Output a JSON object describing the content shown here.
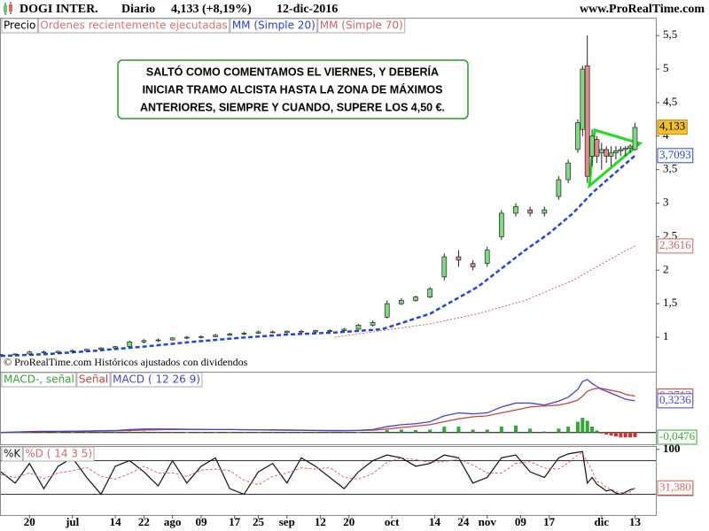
{
  "header": {
    "symbol": "DOGI INTER.",
    "period": "Diario",
    "price": "4,133 (+8,19%)",
    "date": "12-dic-2016",
    "site": "www.ProRealTime.com"
  },
  "footer": "© ProRealTime.com  Históricos ajustados con dividendos",
  "chart_data": [
    {
      "type": "candlestick",
      "xlim": [
        0,
        137
      ],
      "ylim": [
        0.75,
        5.74
      ],
      "yticks": [
        1,
        {
          "value": 1.5,
          "label": "1,5"
        },
        2,
        {
          "value": 2.5,
          "label": "2,5"
        },
        3,
        {
          "value": 3.5,
          "label": "3,5"
        },
        4,
        {
          "value": 4.5,
          "label": "4,5"
        },
        5,
        {
          "value": 5.5,
          "label": "5,5"
        }
      ],
      "legend": [
        {
          "name": "Precio",
          "color": "#000000"
        },
        {
          "name": "Ordenes recientemente ejecutadas",
          "color": "#e07070"
        }
      ],
      "up_color": "#80d880",
      "down_color": "#e08a8a",
      "x": [
        0,
        3,
        6,
        9,
        12,
        15,
        18,
        21,
        24,
        27,
        30,
        33,
        36,
        39,
        42,
        45,
        48,
        51,
        54,
        57,
        60,
        63,
        66,
        69,
        72,
        75,
        78,
        81,
        84,
        87,
        90,
        93,
        96,
        99,
        102,
        105,
        108,
        111,
        114,
        117,
        119,
        121,
        122,
        123,
        124,
        125,
        126,
        127,
        128,
        129,
        130,
        131,
        132,
        133
      ],
      "open": [
        0.73,
        0.74,
        0.75,
        0.78,
        0.77,
        0.79,
        0.8,
        0.82,
        0.84,
        0.86,
        0.93,
        0.95,
        0.96,
        0.99,
        1.0,
        1.01,
        1.03,
        1.05,
        1.06,
        1.08,
        1.07,
        1.09,
        1.08,
        1.1,
        1.1,
        1.12,
        1.18,
        1.3,
        1.5,
        1.55,
        1.6,
        1.9,
        2.2,
        2.1,
        2.1,
        2.5,
        2.85,
        2.9,
        2.85,
        3.1,
        3.35,
        3.8,
        4.1,
        5.05,
        3.7,
        3.95,
        3.75,
        3.8,
        3.7,
        3.75,
        3.78,
        3.8,
        3.82,
        3.8
      ],
      "high": [
        0.75,
        0.76,
        0.8,
        0.8,
        0.8,
        0.82,
        0.83,
        0.85,
        0.87,
        0.95,
        0.97,
        0.98,
        1.0,
        1.02,
        1.03,
        1.05,
        1.07,
        1.08,
        1.1,
        1.1,
        1.1,
        1.11,
        1.11,
        1.12,
        1.14,
        1.2,
        1.25,
        1.55,
        1.58,
        1.62,
        1.75,
        2.25,
        2.3,
        2.15,
        2.35,
        2.9,
        3.0,
        2.95,
        2.95,
        3.4,
        3.65,
        4.25,
        5.05,
        5.5,
        4.1,
        4.0,
        3.9,
        3.85,
        3.85,
        3.85,
        3.85,
        3.85,
        3.88,
        4.2
      ],
      "low": [
        0.72,
        0.73,
        0.74,
        0.76,
        0.76,
        0.78,
        0.79,
        0.81,
        0.83,
        0.85,
        0.91,
        0.93,
        0.95,
        0.97,
        0.98,
        1.0,
        1.02,
        1.03,
        1.05,
        1.06,
        1.06,
        1.07,
        1.07,
        1.08,
        1.09,
        1.11,
        1.16,
        1.28,
        1.48,
        1.53,
        1.58,
        1.85,
        2.05,
        2.0,
        2.05,
        2.45,
        2.8,
        2.8,
        2.8,
        3.05,
        3.3,
        3.75,
        4.0,
        3.3,
        3.55,
        3.6,
        3.5,
        3.6,
        3.55,
        3.65,
        3.7,
        3.7,
        3.75,
        3.78
      ],
      "close": [
        0.74,
        0.75,
        0.78,
        0.77,
        0.79,
        0.8,
        0.82,
        0.84,
        0.86,
        0.93,
        0.95,
        0.96,
        0.99,
        1.0,
        1.01,
        1.03,
        1.05,
        1.06,
        1.08,
        1.07,
        1.09,
        1.08,
        1.1,
        1.1,
        1.12,
        1.18,
        1.22,
        1.5,
        1.55,
        1.6,
        1.72,
        2.2,
        2.15,
        2.05,
        2.3,
        2.85,
        2.95,
        2.85,
        2.9,
        3.35,
        3.6,
        4.2,
        5.0,
        3.4,
        4.0,
        3.7,
        3.8,
        3.7,
        3.75,
        3.78,
        3.8,
        3.82,
        3.85,
        4.13
      ],
      "last_label": {
        "value": 4.133,
        "label": "4,133"
      },
      "lines": [
        {
          "name": "MM (Simple 20)",
          "color": "#2244dd",
          "x": [
            0,
            10,
            20,
            30,
            40,
            50,
            60,
            70,
            80,
            90,
            100,
            110,
            115,
            120,
            124,
            128,
            133
          ],
          "values": [
            0.72,
            0.75,
            0.8,
            0.86,
            0.93,
            0.99,
            1.04,
            1.07,
            1.12,
            1.35,
            1.75,
            2.3,
            2.55,
            2.85,
            3.15,
            3.4,
            3.7093
          ],
          "last_label": {
            "value": 3.7093,
            "label": "3,7093"
          }
        },
        {
          "name": "MM (Simple 70)",
          "color": "#cc6666",
          "x": [
            70,
            80,
            90,
            100,
            110,
            120,
            125,
            130,
            133
          ],
          "values": [
            1.0,
            1.1,
            1.2,
            1.35,
            1.55,
            1.85,
            2.05,
            2.25,
            2.3616
          ],
          "last_label": {
            "value": 2.3616,
            "label": "2,3616"
          }
        }
      ],
      "annotation": [
        "SALTÓ COMO COMENTAMOS EL VIERNES, Y DEBERÍA",
        "INICIAR TRAMO ALCISTA HASTA LA ZONA DE MÁXIMOS",
        "ANTERIORES, SIEMPRE Y CUANDO, SUPERE LOS 4,50 €."
      ]
    },
    {
      "type": "macd",
      "xlim": [
        0,
        137
      ],
      "ylim": [
        -0.12,
        0.62
      ],
      "levels": [
        0
      ],
      "x": [
        0,
        3,
        6,
        9,
        12,
        15,
        18,
        21,
        24,
        27,
        30,
        33,
        36,
        39,
        42,
        45,
        48,
        51,
        54,
        57,
        60,
        63,
        66,
        69,
        72,
        75,
        78,
        81,
        84,
        87,
        90,
        93,
        96,
        99,
        102,
        105,
        108,
        111,
        114,
        117,
        119,
        121,
        122,
        123,
        124,
        125,
        126,
        127,
        128,
        129,
        130,
        131,
        132,
        133
      ],
      "series": [
        {
          "name": "MACD-, señal",
          "kind": "histogram",
          "color": "#33aa33",
          "down_color": "#cc3333",
          "values": [
            0,
            0.003,
            0.005,
            0.004,
            0.002,
            0.002,
            0.003,
            0.004,
            0.004,
            0.01,
            0.01,
            0.007,
            0.005,
            0.002,
            -0.001,
            0,
            0,
            -0.001,
            0,
            -0.002,
            -0.002,
            -0.002,
            -0.002,
            -0.003,
            -0.002,
            0.002,
            0.007,
            0.025,
            0.03,
            0.025,
            0.03,
            0.06,
            0.06,
            0.03,
            0.03,
            0.06,
            0.07,
            0.04,
            0.01,
            0.04,
            0.06,
            0.11,
            0.15,
            0.12,
            0.06,
            0.02,
            -0.01,
            -0.02,
            -0.03,
            -0.04,
            -0.05,
            -0.05,
            -0.05,
            -0.0476
          ],
          "last_label": {
            "value": -0.0476,
            "label": "-0,0476"
          }
        },
        {
          "name": "Señal",
          "kind": "line",
          "color": "#cc4444",
          "values": [
            0.0,
            0.002,
            0.005,
            0.008,
            0.01,
            0.011,
            0.012,
            0.014,
            0.016,
            0.02,
            0.025,
            0.028,
            0.03,
            0.031,
            0.031,
            0.03,
            0.03,
            0.029,
            0.028,
            0.027,
            0.026,
            0.024,
            0.022,
            0.021,
            0.02,
            0.02,
            0.023,
            0.035,
            0.05,
            0.065,
            0.08,
            0.11,
            0.14,
            0.16,
            0.17,
            0.2,
            0.23,
            0.26,
            0.27,
            0.28,
            0.3,
            0.33,
            0.37,
            0.42,
            0.44,
            0.45,
            0.45,
            0.44,
            0.43,
            0.42,
            0.41,
            0.39,
            0.38,
            0.3713
          ],
          "last_label": {
            "value": 0.3713,
            "label": "0,3713"
          }
        },
        {
          "name": "MACD ( 12 26 9)",
          "kind": "line",
          "color": "#4444cc",
          "values": [
            0.0,
            0.005,
            0.01,
            0.012,
            0.012,
            0.013,
            0.015,
            0.018,
            0.02,
            0.03,
            0.035,
            0.035,
            0.035,
            0.033,
            0.03,
            0.03,
            0.03,
            0.028,
            0.028,
            0.025,
            0.024,
            0.022,
            0.02,
            0.018,
            0.018,
            0.022,
            0.03,
            0.06,
            0.08,
            0.09,
            0.11,
            0.17,
            0.2,
            0.19,
            0.2,
            0.26,
            0.3,
            0.3,
            0.28,
            0.32,
            0.36,
            0.44,
            0.52,
            0.54,
            0.5,
            0.47,
            0.44,
            0.42,
            0.4,
            0.38,
            0.36,
            0.34,
            0.33,
            0.3236
          ],
          "last_label": {
            "value": 0.3236,
            "label": "0,3236"
          }
        }
      ]
    },
    {
      "type": "stochastic",
      "xlim": [
        0,
        137
      ],
      "ylim": [
        -17,
        106
      ],
      "yticks": [
        100
      ],
      "levels": [
        20,
        80
      ],
      "x": [
        0,
        3,
        6,
        9,
        12,
        15,
        18,
        21,
        24,
        27,
        30,
        33,
        36,
        39,
        42,
        45,
        48,
        51,
        54,
        57,
        60,
        63,
        66,
        69,
        72,
        75,
        78,
        81,
        84,
        87,
        90,
        93,
        96,
        99,
        102,
        105,
        108,
        111,
        114,
        117,
        119,
        121,
        122,
        123,
        124,
        125,
        126,
        127,
        128,
        129,
        130,
        131,
        132,
        133
      ],
      "xticks": [
        {
          "value": 6,
          "label": "20"
        },
        {
          "value": 15,
          "label": "jul"
        },
        {
          "value": 24,
          "label": "14"
        },
        {
          "value": 30,
          "label": "22"
        },
        {
          "value": 36,
          "label": "ago"
        },
        {
          "value": 42,
          "label": "09"
        },
        {
          "value": 49,
          "label": "17"
        },
        {
          "value": 54,
          "label": "25"
        },
        {
          "value": 60,
          "label": "sep"
        },
        {
          "value": 67,
          "label": "12"
        },
        {
          "value": 73,
          "label": "20"
        },
        {
          "value": 82,
          "label": "oct"
        },
        {
          "value": 91,
          "label": "14"
        },
        {
          "value": 97,
          "label": "24"
        },
        {
          "value": 102,
          "label": "nov"
        },
        {
          "value": 109,
          "label": "09"
        },
        {
          "value": 115,
          "label": "17"
        },
        {
          "value": 126,
          "label": "dic"
        },
        {
          "value": 133,
          "label": "13"
        }
      ],
      "series": [
        {
          "name": "%K",
          "color": "#111111",
          "values": [
            60,
            40,
            75,
            30,
            70,
            85,
            50,
            20,
            70,
            80,
            60,
            35,
            80,
            40,
            70,
            85,
            30,
            20,
            60,
            75,
            40,
            85,
            70,
            50,
            30,
            60,
            80,
            90,
            85,
            70,
            75,
            90,
            85,
            40,
            50,
            85,
            90,
            60,
            50,
            85,
            92,
            95,
            96,
            40,
            50,
            38,
            32,
            26,
            28,
            22,
            20,
            24,
            28,
            30.602
          ],
          "last_label": {
            "value": 30.602,
            "label": "30,602"
          }
        },
        {
          "name": "%D ( 14 3 5)",
          "color": "#dd6666",
          "values": [
            55,
            50,
            58,
            48,
            58,
            62,
            68,
            52,
            47,
            57,
            70,
            58,
            58,
            52,
            63,
            65,
            62,
            45,
            37,
            52,
            58,
            67,
            65,
            68,
            50,
            47,
            57,
            77,
            85,
            82,
            77,
            78,
            83,
            72,
            58,
            58,
            75,
            78,
            67,
            65,
            76,
            90,
            94,
            77,
            62,
            43,
            40,
            32,
            29,
            25,
            23,
            22,
            24,
            31.38
          ],
          "last_label": {
            "value": 31.38,
            "label": "31,380"
          }
        }
      ]
    }
  ]
}
